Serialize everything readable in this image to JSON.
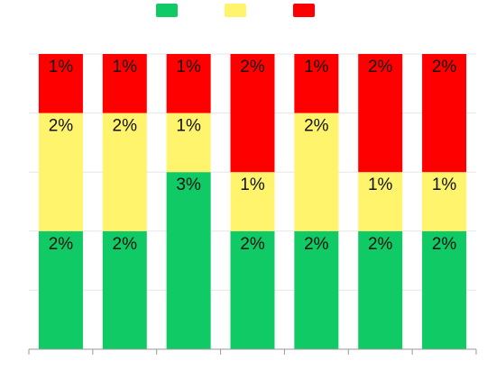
{
  "chart_data": {
    "type": "bar",
    "stacked": true,
    "categories": [
      "",
      "",
      "",
      "",
      "",
      "",
      ""
    ],
    "series": [
      {
        "color": "#10CB65",
        "values": [
          2,
          2,
          3,
          2,
          2,
          2,
          2
        ],
        "labels": [
          "2%",
          "2%",
          "3%",
          "2%",
          "2%",
          "2%",
          "2%"
        ]
      },
      {
        "color": "#FFF46C",
        "values": [
          2,
          2,
          1,
          1,
          2,
          1,
          1
        ],
        "labels": [
          "2%",
          "2%",
          "1%",
          "1%",
          "2%",
          "1%",
          "1%"
        ]
      },
      {
        "color": "#FF0000",
        "values": [
          1,
          1,
          1,
          2,
          1,
          2,
          2
        ],
        "labels": [
          "1%",
          "1%",
          "1%",
          "2%",
          "1%",
          "2%",
          "2%"
        ]
      }
    ],
    "ylim": [
      0,
      5
    ],
    "yticks": [
      0,
      1,
      2,
      3,
      4,
      5
    ],
    "grid": true,
    "legend_position": "top-center",
    "title": "",
    "xlabel": "",
    "ylabel": ""
  }
}
